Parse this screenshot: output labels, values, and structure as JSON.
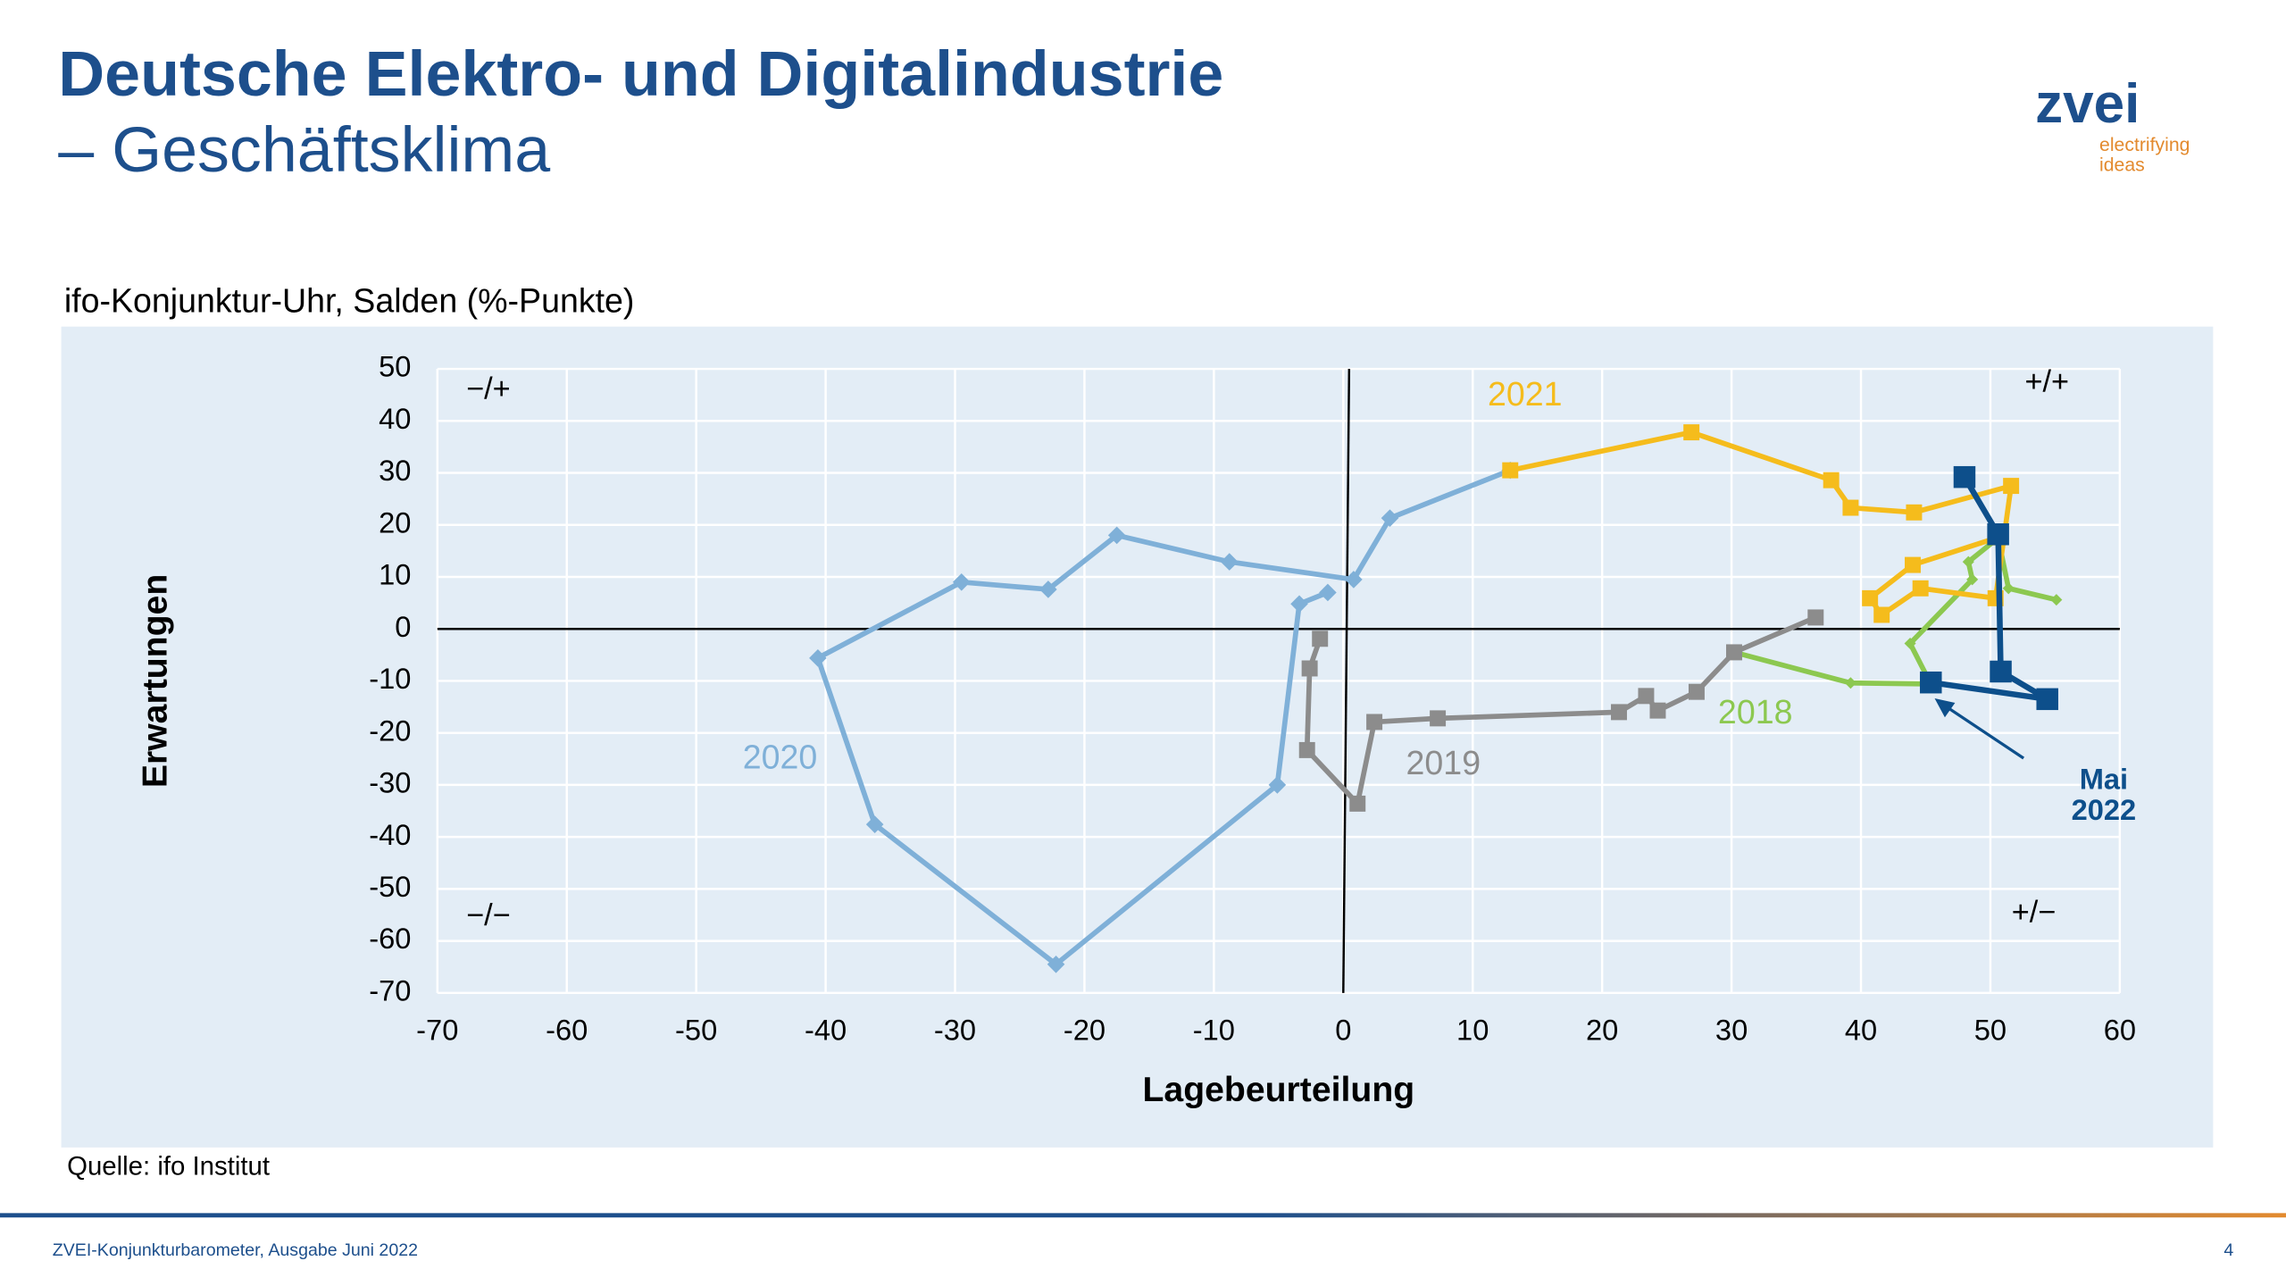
{
  "header": {
    "title": "Deutsche Elektro- und Digitalindustrie",
    "subtitle": "– Geschäftsklima",
    "logo": "zvei",
    "logo_tagline": [
      "electrifying",
      "ideas"
    ]
  },
  "chart_data": {
    "type": "line",
    "title": "ifo-Konjunktur-Uhr, Salden (%-Punkte)",
    "x_label": "Lagebeurteilung",
    "y_label": "Erwartungen",
    "xlim": [
      -70,
      60
    ],
    "xticks": [
      -70,
      -60,
      -50,
      -40,
      -30,
      -20,
      -10,
      0,
      10,
      20,
      30,
      40,
      50,
      60
    ],
    "ylim": [
      -70,
      50
    ],
    "yticks": [
      -70,
      -60,
      -50,
      -40,
      -30,
      -20,
      -10,
      0,
      10,
      20,
      30,
      40,
      50
    ],
    "grid": true,
    "quadrant_labels": [
      "−/+",
      "+/+",
      "−/−",
      "+/−"
    ],
    "series": [
      {
        "name": "2018",
        "color": "#8cc850",
        "marker": "diamond",
        "x": [
          55.1,
          51.4,
          50.6,
          48.3,
          48.6,
          43.8,
          45.4,
          39.2,
          30.2
        ],
        "values": [
          5.6,
          7.8,
          17.5,
          12.9,
          9.5,
          -2.8,
          -10.6,
          -10.4,
          -4.5
        ]
      },
      {
        "name": "2019",
        "color": "#8c8c8c",
        "marker": "square",
        "x": [
          36.5,
          30.2,
          27.3,
          24.3,
          23.4,
          21.3,
          7.3,
          2.4,
          1.1,
          -2.8,
          -2.6,
          -1.8
        ],
        "values": [
          2.2,
          -4.5,
          -12.1,
          -15.7,
          -12.9,
          -16.0,
          -17.2,
          -17.9,
          -33.6,
          -23.3,
          -7.6,
          -1.9
        ]
      },
      {
        "name": "2020",
        "color": "#7fb0d8",
        "marker": "diamond",
        "x": [
          -1.2,
          -3.4,
          -5.1,
          -22.2,
          -36.2,
          -40.6,
          -29.5,
          -22.8,
          -17.5,
          -8.8,
          0.8,
          3.6,
          12.9
        ],
        "values": [
          7.0,
          4.8,
          -30.0,
          -64.5,
          -37.6,
          -5.6,
          9.0,
          7.6,
          18.0,
          12.9,
          9.5,
          21.3,
          30.5
        ]
      },
      {
        "name": "2021",
        "color": "#f5bc1c",
        "marker": "square",
        "x": [
          12.9,
          26.9,
          37.7,
          39.2,
          44.1,
          51.6,
          50.4,
          44.6,
          41.6,
          40.7,
          44.0,
          50.6
        ],
        "values": [
          30.5,
          37.8,
          28.6,
          23.3,
          22.4,
          27.5,
          5.9,
          7.8,
          2.7,
          5.9,
          12.3,
          17.6
        ]
      },
      {
        "color": "#0d4f8b",
        "marker": "bigsquare",
        "x": [
          48.0,
          50.6,
          50.8,
          54.4,
          45.4
        ],
        "values": [
          29.2,
          18.2,
          -8.2,
          -13.5,
          -10.3
        ]
      }
    ],
    "annotation": [
      "Mai",
      "2022"
    ]
  },
  "footer": {
    "source": "Quelle: ifo Institut",
    "publication": "ZVEI-Konjunkturbarometer, Ausgabe Juni 2022",
    "page": "4"
  }
}
